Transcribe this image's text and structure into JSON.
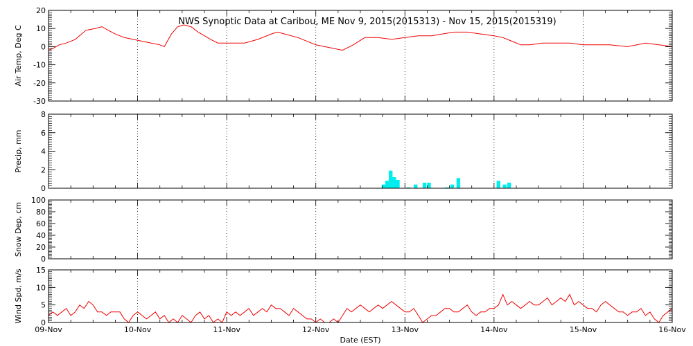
{
  "chart_data": {
    "title": "NWS Synoptic Data at Caribou, ME   Nov  9, 2015(2015313) - Nov 15, 2015(2015319)",
    "xlabel": "Date (EST)",
    "x_ticks": [
      "09-Nov",
      "10-Nov",
      "11-Nov",
      "12-Nov",
      "13-Nov",
      "14-Nov",
      "15-Nov",
      "16-Nov"
    ],
    "x_range_days": [
      9,
      16
    ],
    "grid": "dotted-vertical-daily",
    "colors": {
      "line": "#ee0000",
      "precip": "#00eeee",
      "axes": "#000000"
    },
    "panels": [
      {
        "id": "temp",
        "type": "line",
        "ylabel": "Air Temp, Deg C",
        "ylim": [
          -30,
          20
        ],
        "yticks": [
          -30,
          -20,
          -10,
          0,
          10,
          20
        ],
        "yticklabels": [
          "-30",
          "-20",
          "-10",
          "0",
          "10",
          "20"
        ],
        "x": [
          9.0,
          9.05,
          9.12,
          9.2,
          9.3,
          9.42,
          9.52,
          9.6,
          9.67,
          9.75,
          9.85,
          9.95,
          10.05,
          10.15,
          10.25,
          10.3,
          10.38,
          10.45,
          10.52,
          10.6,
          10.68,
          10.75,
          10.82,
          10.9,
          11.0,
          11.1,
          11.2,
          11.35,
          11.5,
          11.57,
          11.65,
          11.8,
          11.95,
          12.0,
          12.1,
          12.2,
          12.3,
          12.42,
          12.55,
          12.7,
          12.85,
          13.0,
          13.15,
          13.3,
          13.42,
          13.55,
          13.7,
          13.85,
          14.0,
          14.1,
          14.2,
          14.3,
          14.4,
          14.55,
          14.7,
          14.85,
          15.0,
          15.15,
          15.3,
          15.5,
          15.7,
          15.85,
          16.0
        ],
        "values": [
          -2,
          -1,
          1,
          2,
          4,
          9,
          10,
          11,
          9,
          7,
          5,
          4,
          3,
          2,
          1,
          0,
          7,
          11,
          12,
          11,
          8,
          6,
          4,
          2,
          2,
          2,
          2,
          4,
          7,
          8,
          7,
          5,
          2,
          1,
          0,
          -1,
          -2,
          1,
          5,
          5,
          4,
          5,
          6,
          6,
          7,
          8,
          8,
          7,
          6,
          5,
          3,
          1,
          1,
          2,
          2,
          2,
          1,
          1,
          1,
          0,
          2,
          1,
          0
        ]
      },
      {
        "id": "precip",
        "type": "bar",
        "ylabel": "Precip, mm",
        "ylim": [
          0,
          8
        ],
        "yticks": [
          0,
          2,
          4,
          6,
          8
        ],
        "yticklabels": [
          "0",
          "2",
          "4",
          "6",
          "8"
        ],
        "bar_width_days": 0.042,
        "bars": [
          {
            "x": 12.76,
            "value": 0.4
          },
          {
            "x": 12.8,
            "value": 0.8
          },
          {
            "x": 12.84,
            "value": 1.9
          },
          {
            "x": 12.88,
            "value": 1.2
          },
          {
            "x": 12.92,
            "value": 0.9
          },
          {
            "x": 13.04,
            "value": 0.1
          },
          {
            "x": 13.12,
            "value": 0.4
          },
          {
            "x": 13.22,
            "value": 0.6
          },
          {
            "x": 13.27,
            "value": 0.6
          },
          {
            "x": 13.47,
            "value": 0.1
          },
          {
            "x": 13.53,
            "value": 0.4
          },
          {
            "x": 13.6,
            "value": 1.1
          },
          {
            "x": 14.05,
            "value": 0.8
          },
          {
            "x": 14.12,
            "value": 0.4
          },
          {
            "x": 14.17,
            "value": 0.6
          }
        ]
      },
      {
        "id": "snow",
        "type": "line",
        "ylabel": "Snow Dep, cm",
        "ylim": [
          0,
          100
        ],
        "yticks": [
          0,
          20,
          40,
          60,
          80,
          100
        ],
        "yticklabels": [
          "0",
          "20",
          "40",
          "60",
          "80",
          "100"
        ],
        "x": [],
        "values": []
      },
      {
        "id": "wind",
        "type": "line",
        "ylabel": "Wind Spd, m/s",
        "ylim": [
          0,
          15
        ],
        "yticks": [
          0,
          5,
          10,
          15
        ],
        "yticklabels": [
          "0",
          "5",
          "10",
          "15"
        ],
        "x": [
          9.0,
          9.05,
          9.1,
          9.15,
          9.2,
          9.25,
          9.3,
          9.35,
          9.4,
          9.45,
          9.5,
          9.55,
          9.6,
          9.65,
          9.7,
          9.75,
          9.8,
          9.85,
          9.9,
          9.95,
          10.0,
          10.05,
          10.1,
          10.15,
          10.2,
          10.25,
          10.3,
          10.35,
          10.4,
          10.45,
          10.5,
          10.55,
          10.6,
          10.65,
          10.7,
          10.75,
          10.8,
          10.85,
          10.9,
          10.95,
          11.0,
          11.05,
          11.1,
          11.15,
          11.2,
          11.25,
          11.3,
          11.35,
          11.4,
          11.45,
          11.5,
          11.55,
          11.6,
          11.65,
          11.7,
          11.75,
          11.8,
          11.85,
          11.9,
          11.95,
          12.0,
          12.05,
          12.1,
          12.15,
          12.2,
          12.25,
          12.3,
          12.35,
          12.4,
          12.45,
          12.5,
          12.55,
          12.6,
          12.65,
          12.7,
          12.75,
          12.8,
          12.85,
          12.9,
          12.95,
          13.0,
          13.05,
          13.1,
          13.15,
          13.2,
          13.25,
          13.3,
          13.35,
          13.4,
          13.45,
          13.5,
          13.55,
          13.6,
          13.65,
          13.7,
          13.75,
          13.8,
          13.85,
          13.9,
          13.95,
          14.0,
          14.05,
          14.1,
          14.15,
          14.2,
          14.25,
          14.3,
          14.35,
          14.4,
          14.45,
          14.5,
          14.55,
          14.6,
          14.65,
          14.7,
          14.75,
          14.8,
          14.85,
          14.9,
          14.95,
          15.0,
          15.05,
          15.1,
          15.15,
          15.2,
          15.25,
          15.3,
          15.35,
          15.4,
          15.45,
          15.5,
          15.55,
          15.6,
          15.65,
          15.7,
          15.75,
          15.8,
          15.85,
          15.9,
          15.95,
          16.0
        ],
        "values": [
          2,
          3,
          2,
          3,
          4,
          2,
          3,
          5,
          4,
          6,
          5,
          3,
          3,
          2,
          3,
          3,
          3,
          1,
          0,
          2,
          3,
          2,
          1,
          2,
          3,
          1,
          2,
          0,
          1,
          0,
          2,
          1,
          0,
          2,
          3,
          1,
          2,
          0,
          1,
          0,
          3,
          2,
          3,
          2,
          3,
          4,
          2,
          3,
          4,
          3,
          5,
          4,
          4,
          3,
          2,
          4,
          3,
          2,
          1,
          1,
          0,
          1,
          0,
          0,
          1,
          0,
          2,
          4,
          3,
          4,
          5,
          4,
          3,
          4,
          5,
          4,
          5,
          6,
          5,
          4,
          3,
          3,
          4,
          2,
          0,
          1,
          2,
          2,
          3,
          4,
          4,
          3,
          3,
          4,
          5,
          3,
          2,
          3,
          3,
          4,
          4,
          5,
          8,
          5,
          6,
          5,
          4,
          5,
          6,
          5,
          5,
          6,
          7,
          5,
          6,
          7,
          6,
          8,
          5,
          6,
          5,
          4,
          4,
          3,
          5,
          6,
          5,
          4,
          3,
          3,
          2,
          3,
          3,
          4,
          2,
          3,
          1,
          0,
          2,
          3,
          4
        ]
      }
    ]
  }
}
